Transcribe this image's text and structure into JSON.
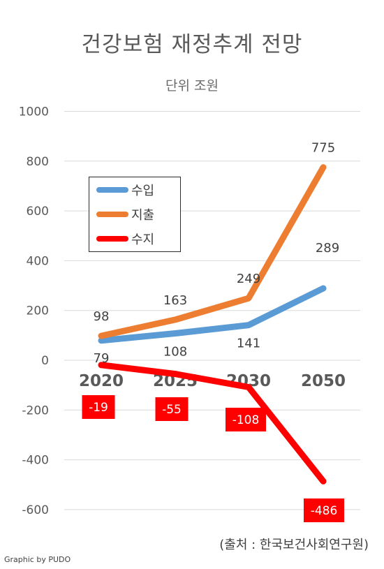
{
  "title": "건강보험 재정추계 전망",
  "subtitle": "단위 조원",
  "source": "(출처 : 한국보건사회연구원)",
  "credit": "Graphic by PUDO",
  "chart_data": {
    "type": "line",
    "categories": [
      "2020",
      "2025",
      "2030",
      "2050"
    ],
    "y_ticks": [
      "1000",
      "800",
      "600",
      "400",
      "200",
      "0",
      "-200",
      "-400",
      "-600"
    ],
    "ylim": [
      -650,
      1000
    ],
    "grid": true,
    "legend_position": "upper-left",
    "series": [
      {
        "name": "수입",
        "color": "#5b9bd5",
        "values": [
          79,
          108,
          141,
          289
        ],
        "labels": [
          "79",
          "108",
          "141",
          "289"
        ]
      },
      {
        "name": "지출",
        "color": "#ed7d31",
        "values": [
          98,
          163,
          249,
          775
        ],
        "labels": [
          "98",
          "163",
          "249",
          "775"
        ]
      },
      {
        "name": "수지",
        "color": "#ff0000",
        "values": [
          -19,
          -55,
          -108,
          -486
        ],
        "labels": [
          "-19",
          "-55",
          "-108",
          "-486"
        ]
      }
    ]
  }
}
